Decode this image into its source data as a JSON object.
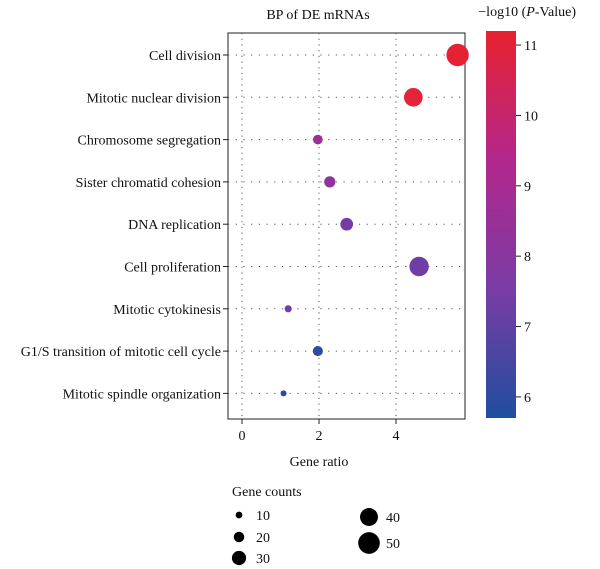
{
  "chart_data": {
    "type": "scatter",
    "title": "BP of DE mRNAs",
    "xlabel": "Gene ratio",
    "xlim": [
      -0.3,
      5.9
    ],
    "xticks": [
      0,
      2,
      4
    ],
    "grid": "dotted",
    "categories": [
      "Cell division",
      "Mitotic nuclear division",
      "Chromosome segregation",
      "Sister chromatid cohesion",
      "DNA replication",
      "Cell proliferation",
      "Mitotic cytokinesis",
      "G1/S transition of mitotic cell cycle",
      "Mitotic spindle organization"
    ],
    "points": [
      {
        "term": "Cell division",
        "gene_ratio": 5.6,
        "gene_count": 52,
        "neg_log10_p": 11.1
      },
      {
        "term": "Mitotic nuclear division",
        "gene_ratio": 4.45,
        "gene_count": 42,
        "neg_log10_p": 11.0
      },
      {
        "term": "Chromosome segregation",
        "gene_ratio": 1.97,
        "gene_count": 18,
        "neg_log10_p": 8.6
      },
      {
        "term": "Sister chromatid cohesion",
        "gene_ratio": 2.28,
        "gene_count": 22,
        "neg_log10_p": 8.2
      },
      {
        "term": "DNA replication",
        "gene_ratio": 2.72,
        "gene_count": 26,
        "neg_log10_p": 7.4
      },
      {
        "term": "Cell proliferation",
        "gene_ratio": 4.6,
        "gene_count": 44,
        "neg_log10_p": 7.3
      },
      {
        "term": "Mitotic cytokinesis",
        "gene_ratio": 1.2,
        "gene_count": 11,
        "neg_log10_p": 7.3
      },
      {
        "term": "G1/S transition of mitotic cell cycle",
        "gene_ratio": 1.97,
        "gene_count": 19,
        "neg_log10_p": 6.0
      },
      {
        "term": "Mitotic spindle organization",
        "gene_ratio": 1.08,
        "gene_count": 8,
        "neg_log10_p": 5.95
      }
    ],
    "color_scale": {
      "title_prefix": "−log10 (",
      "title_italic": "P",
      "title_suffix": "-Value)",
      "min": 5.7,
      "max": 11.2,
      "ticks": [
        6,
        7,
        8,
        9,
        10,
        11
      ],
      "colors": [
        "#1f4e9e",
        "#7a3ca5",
        "#b3278c",
        "#e8222f"
      ]
    },
    "size_legend": {
      "title": "Gene counts",
      "entries": [
        10,
        20,
        30,
        40,
        50
      ]
    }
  }
}
